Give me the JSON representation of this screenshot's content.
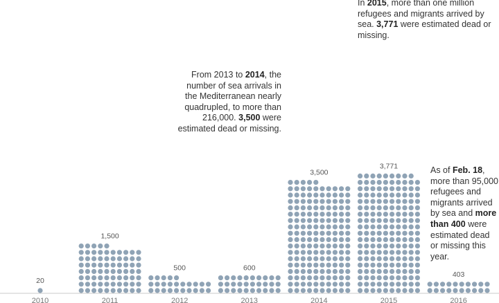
{
  "chart_data": {
    "type": "bar",
    "categories": [
      "2010",
      "2011",
      "2012",
      "2013",
      "2014",
      "2015",
      "2016"
    ],
    "values": [
      20,
      1500,
      500,
      600,
      3500,
      3771,
      403
    ],
    "value_labels": [
      "20",
      "1,500",
      "500",
      "600",
      "3,500",
      "3,771",
      "403"
    ],
    "ylim": [
      0,
      4000
    ],
    "colors": {
      "dot": "#8fa3b5",
      "axis": "#c9c9c9",
      "tick_text": "#777777",
      "label_text": "#555555"
    }
  },
  "annotations": {
    "a2014": {
      "t1": "From 2013 to ",
      "b1": "2014",
      "t2": ", the number of sea arrivals in the Mediterranean nearly quadrupled, to more than 216,000. ",
      "b2": "3,500",
      "t3": " were estimated dead or missing."
    },
    "a2015": {
      "t1": "In ",
      "b1": "2015",
      "t2": ", more than one million refugees and migrants arrived by sea. ",
      "b2": "3,771",
      "t3": " were estimated dead or missing."
    },
    "a2016": {
      "t1": "As of ",
      "b1": "Feb. 18",
      "t2": ", more than 95,000 refugees and migrants arrived by sea and ",
      "b2": "more than 400",
      "t3": " were estimated dead or missing this year."
    }
  }
}
